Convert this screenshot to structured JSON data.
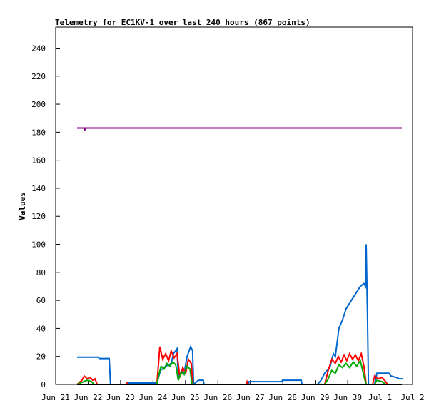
{
  "chart_data": {
    "type": "line",
    "title": "Telemetry for EC1KV-1 over last 240 hours (867 points)",
    "ylabel": "Values",
    "xlim": [
      0,
      11
    ],
    "xticks": [
      {
        "value": 0,
        "label": "Jun 21"
      },
      {
        "value": 1,
        "label": "Jun 22"
      },
      {
        "value": 2,
        "label": "Jun 23"
      },
      {
        "value": 3,
        "label": "Jun 24"
      },
      {
        "value": 4,
        "label": "Jun 25"
      },
      {
        "value": 5,
        "label": "Jun 26"
      },
      {
        "value": 6,
        "label": "Jun 27"
      },
      {
        "value": 7,
        "label": "Jun 28"
      },
      {
        "value": 8,
        "label": "Jun 29"
      },
      {
        "value": 9,
        "label": "Jun 30"
      },
      {
        "value": 10,
        "label": "Jul 1"
      },
      {
        "value": 11,
        "label": "Jul 2"
      }
    ],
    "ylim": [
      0,
      255
    ],
    "yticks": [
      0,
      20,
      40,
      60,
      80,
      100,
      120,
      140,
      160,
      180,
      200,
      220,
      240
    ],
    "series": [
      {
        "color": "#0066cc",
        "x": [
          0.66,
          1.32,
          1.34,
          1.65,
          1.69,
          2.2,
          2.22,
          3.12,
          3.23,
          3.39,
          3.56,
          3.63,
          3.74,
          3.78,
          3.89,
          3.96,
          4.05,
          4.16,
          4.22,
          4.25,
          4.4,
          4.55,
          4.57,
          5.94,
          5.96,
          6.97,
          6.99,
          7.57,
          7.59,
          8.07,
          8.18,
          8.29,
          8.45,
          8.56,
          8.62,
          8.73,
          8.84,
          8.95,
          9.06,
          9.28,
          9.39,
          9.5,
          9.55,
          9.57,
          9.61,
          9.64,
          9.83,
          9.9,
          10.27,
          10.34,
          10.5,
          10.6,
          10.71
        ],
        "values": [
          19.5,
          19.5,
          18.5,
          18.5,
          0,
          0,
          1,
          1,
          10,
          13,
          15,
          22,
          25.5,
          5,
          10,
          8,
          20,
          27,
          24,
          0,
          3,
          3,
          0,
          0,
          2,
          2,
          3,
          3,
          0,
          0,
          3,
          8,
          12,
          22,
          20,
          40,
          46,
          54,
          58,
          66,
          70,
          72,
          70,
          100,
          50,
          0,
          0,
          8,
          8,
          6,
          5,
          4,
          4
        ]
      },
      {
        "color": "#ff0000",
        "x": [
          0.66,
          0.81,
          0.88,
          0.97,
          1.06,
          1.14,
          1.21,
          1.28,
          2.16,
          2.2,
          2.24,
          3.12,
          3.17,
          3.21,
          3.3,
          3.39,
          3.48,
          3.56,
          3.65,
          3.74,
          3.83,
          3.92,
          4.01,
          4.09,
          4.18,
          4.22,
          5.87,
          5.9,
          5.94,
          8.29,
          8.4,
          8.51,
          8.62,
          8.71,
          8.8,
          8.89,
          8.97,
          9.06,
          9.15,
          9.24,
          9.33,
          9.42,
          9.5,
          9.57,
          9.77,
          9.83,
          9.94,
          10.06,
          10.17,
          10.23
        ],
        "values": [
          0,
          3,
          6,
          4,
          5,
          3,
          4,
          0,
          0,
          1,
          0,
          0,
          15,
          27,
          18,
          22,
          17,
          24,
          19,
          22,
          5,
          12,
          8,
          18,
          15,
          0,
          0,
          2,
          0,
          0,
          10,
          18,
          15,
          20,
          16,
          21,
          17,
          22,
          18,
          21,
          17,
          22,
          13,
          0,
          0,
          6,
          4,
          5,
          2,
          0
        ]
      },
      {
        "color": "#00aa00",
        "x": [
          0.66,
          0.86,
          0.97,
          1.1,
          1.19,
          3.12,
          3.19,
          3.25,
          3.34,
          3.43,
          3.52,
          3.61,
          3.7,
          3.78,
          3.87,
          3.96,
          4.05,
          4.14,
          4.2,
          8.29,
          8.4,
          8.51,
          8.62,
          8.73,
          8.84,
          8.95,
          9.06,
          9.17,
          9.28,
          9.39,
          9.5,
          9.57,
          9.83,
          9.9,
          10.06,
          10.17
        ],
        "values": [
          0,
          2,
          3,
          2,
          0,
          0,
          8,
          13,
          11,
          15,
          13,
          16,
          14,
          3,
          9,
          7,
          13,
          11,
          0,
          0,
          4,
          10,
          8,
          14,
          12,
          15,
          12,
          16,
          13,
          17,
          6,
          0,
          0,
          3,
          2,
          0
        ]
      },
      {
        "color": "#000000",
        "x": [
          0.66,
          10.67
        ],
        "values": [
          0,
          0
        ]
      },
      {
        "color": "#800080",
        "x": [
          0.66,
          0.88,
          0.89,
          0.91,
          10.67
        ],
        "values": [
          183,
          183,
          181,
          183,
          183
        ]
      }
    ]
  }
}
